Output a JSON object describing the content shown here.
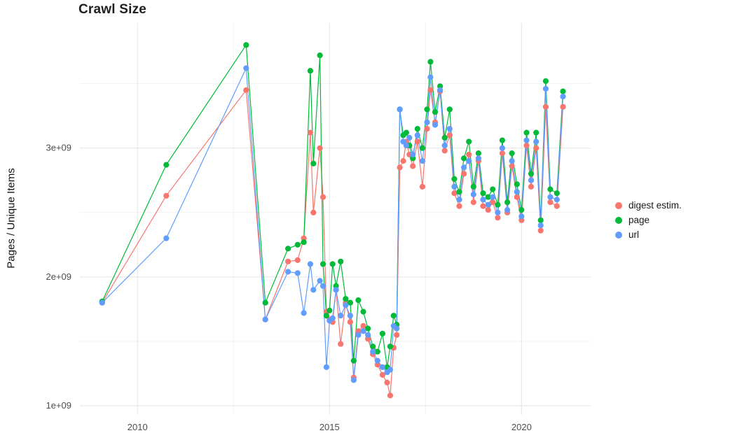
{
  "chart_data": {
    "type": "line",
    "title": "Crawl Size",
    "xlabel": "",
    "ylabel": "Pages / Unique Items",
    "legend_position": "right",
    "grid": true,
    "xlim": [
      2008.5,
      2021.8
    ],
    "ylim": [
      930000000.0,
      3970000000.0
    ],
    "x_ticks": [
      2010,
      2015,
      2020
    ],
    "x_tick_labels": [
      "2010",
      "2015",
      "2020"
    ],
    "x_minor_ticks": [
      2012.5,
      2017.5
    ],
    "y_ticks": [
      1000000000.0,
      2000000000.0,
      3000000000.0
    ],
    "y_tick_labels": [
      "1e+09",
      "2e+09",
      "3e+09"
    ],
    "y_minor_ticks": [
      1500000000.0,
      2500000000.0,
      3500000000.0
    ],
    "x": [
      2009.08,
      2010.75,
      2012.83,
      2013.33,
      2013.92,
      2014.17,
      2014.33,
      2014.5,
      2014.58,
      2014.75,
      2014.83,
      2014.92,
      2015.0,
      2015.08,
      2015.17,
      2015.29,
      2015.42,
      2015.54,
      2015.63,
      2015.75,
      2015.88,
      2016.0,
      2016.13,
      2016.25,
      2016.38,
      2016.5,
      2016.58,
      2016.67,
      2016.75,
      2016.83,
      2016.92,
      2017.0,
      2017.08,
      2017.17,
      2017.29,
      2017.42,
      2017.54,
      2017.63,
      2017.75,
      2017.88,
      2018.0,
      2018.13,
      2018.25,
      2018.38,
      2018.5,
      2018.63,
      2018.75,
      2018.88,
      2019.0,
      2019.13,
      2019.25,
      2019.38,
      2019.5,
      2019.63,
      2019.75,
      2019.88,
      2020.0,
      2020.13,
      2020.25,
      2020.38,
      2020.5,
      2020.63,
      2020.75,
      2020.92,
      2021.08
    ],
    "series": [
      {
        "name": "digest estim.",
        "color": "#F8766D",
        "values": [
          1800000000.0,
          2630000000.0,
          3450000000.0,
          1670000000.0,
          2120000000.0,
          2130000000.0,
          2300000000.0,
          3120000000.0,
          2500000000.0,
          3000000000.0,
          2620000000.0,
          1730000000.0,
          1670000000.0,
          1650000000.0,
          1900000000.0,
          1480000000.0,
          1800000000.0,
          1650000000.0,
          1220000000.0,
          1580000000.0,
          1620000000.0,
          1520000000.0,
          1400000000.0,
          1320000000.0,
          1240000000.0,
          1180000000.0,
          1080000000.0,
          1450000000.0,
          1550000000.0,
          2850000000.0,
          2900000000.0,
          3050000000.0,
          2950000000.0,
          2860000000.0,
          3050000000.0,
          2700000000.0,
          3150000000.0,
          3450000000.0,
          3200000000.0,
          3440000000.0,
          2980000000.0,
          3100000000.0,
          2650000000.0,
          2550000000.0,
          2800000000.0,
          2950000000.0,
          2580000000.0,
          2900000000.0,
          2550000000.0,
          2520000000.0,
          2580000000.0,
          2460000000.0,
          2960000000.0,
          2500000000.0,
          2860000000.0,
          2620000000.0,
          2440000000.0,
          3020000000.0,
          2700000000.0,
          3000000000.0,
          2360000000.0,
          3320000000.0,
          2580000000.0,
          2550000000.0,
          3320000000.0
        ]
      },
      {
        "name": "page",
        "color": "#00BA38",
        "values": [
          1810000000.0,
          2870000000.0,
          3800000000.0,
          1800000000.0,
          2220000000.0,
          2250000000.0,
          2270000000.0,
          3600000000.0,
          2880000000.0,
          3720000000.0,
          2100000000.0,
          1700000000.0,
          1740000000.0,
          2100000000.0,
          1930000000.0,
          2120000000.0,
          1830000000.0,
          1800000000.0,
          1350000000.0,
          1820000000.0,
          1730000000.0,
          1600000000.0,
          1460000000.0,
          1420000000.0,
          1560000000.0,
          1300000000.0,
          1460000000.0,
          1700000000.0,
          1630000000.0,
          3300000000.0,
          3100000000.0,
          3120000000.0,
          3020000000.0,
          2920000000.0,
          3150000000.0,
          3000000000.0,
          3300000000.0,
          3670000000.0,
          3280000000.0,
          3480000000.0,
          3080000000.0,
          3300000000.0,
          2760000000.0,
          2660000000.0,
          2920000000.0,
          3050000000.0,
          2700000000.0,
          2960000000.0,
          2650000000.0,
          2620000000.0,
          2680000000.0,
          2560000000.0,
          3060000000.0,
          2580000000.0,
          2960000000.0,
          2720000000.0,
          2520000000.0,
          3120000000.0,
          2800000000.0,
          3120000000.0,
          2440000000.0,
          3520000000.0,
          2680000000.0,
          2650000000.0,
          3440000000.0
        ]
      },
      {
        "name": "url",
        "color": "#619CFF",
        "values": [
          1800000000.0,
          2300000000.0,
          3620000000.0,
          1670000000.0,
          2040000000.0,
          2030000000.0,
          1720000000.0,
          2100000000.0,
          1900000000.0,
          1970000000.0,
          1930000000.0,
          1300000000.0,
          1660000000.0,
          1680000000.0,
          1900000000.0,
          1700000000.0,
          1780000000.0,
          1700000000.0,
          1200000000.0,
          1550000000.0,
          1580000000.0,
          1550000000.0,
          1420000000.0,
          1350000000.0,
          1300000000.0,
          1260000000.0,
          1280000000.0,
          1620000000.0,
          1600000000.0,
          3300000000.0,
          3050000000.0,
          3020000000.0,
          3080000000.0,
          2950000000.0,
          3100000000.0,
          2900000000.0,
          3200000000.0,
          3550000000.0,
          3180000000.0,
          3450000000.0,
          3020000000.0,
          3150000000.0,
          2700000000.0,
          2600000000.0,
          2850000000.0,
          2900000000.0,
          2640000000.0,
          2920000000.0,
          2600000000.0,
          2560000000.0,
          2620000000.0,
          2500000000.0,
          3000000000.0,
          2520000000.0,
          2900000000.0,
          2660000000.0,
          2470000000.0,
          3060000000.0,
          2750000000.0,
          3050000000.0,
          2400000000.0,
          3460000000.0,
          2620000000.0,
          2600000000.0,
          3400000000.0
        ]
      }
    ]
  }
}
